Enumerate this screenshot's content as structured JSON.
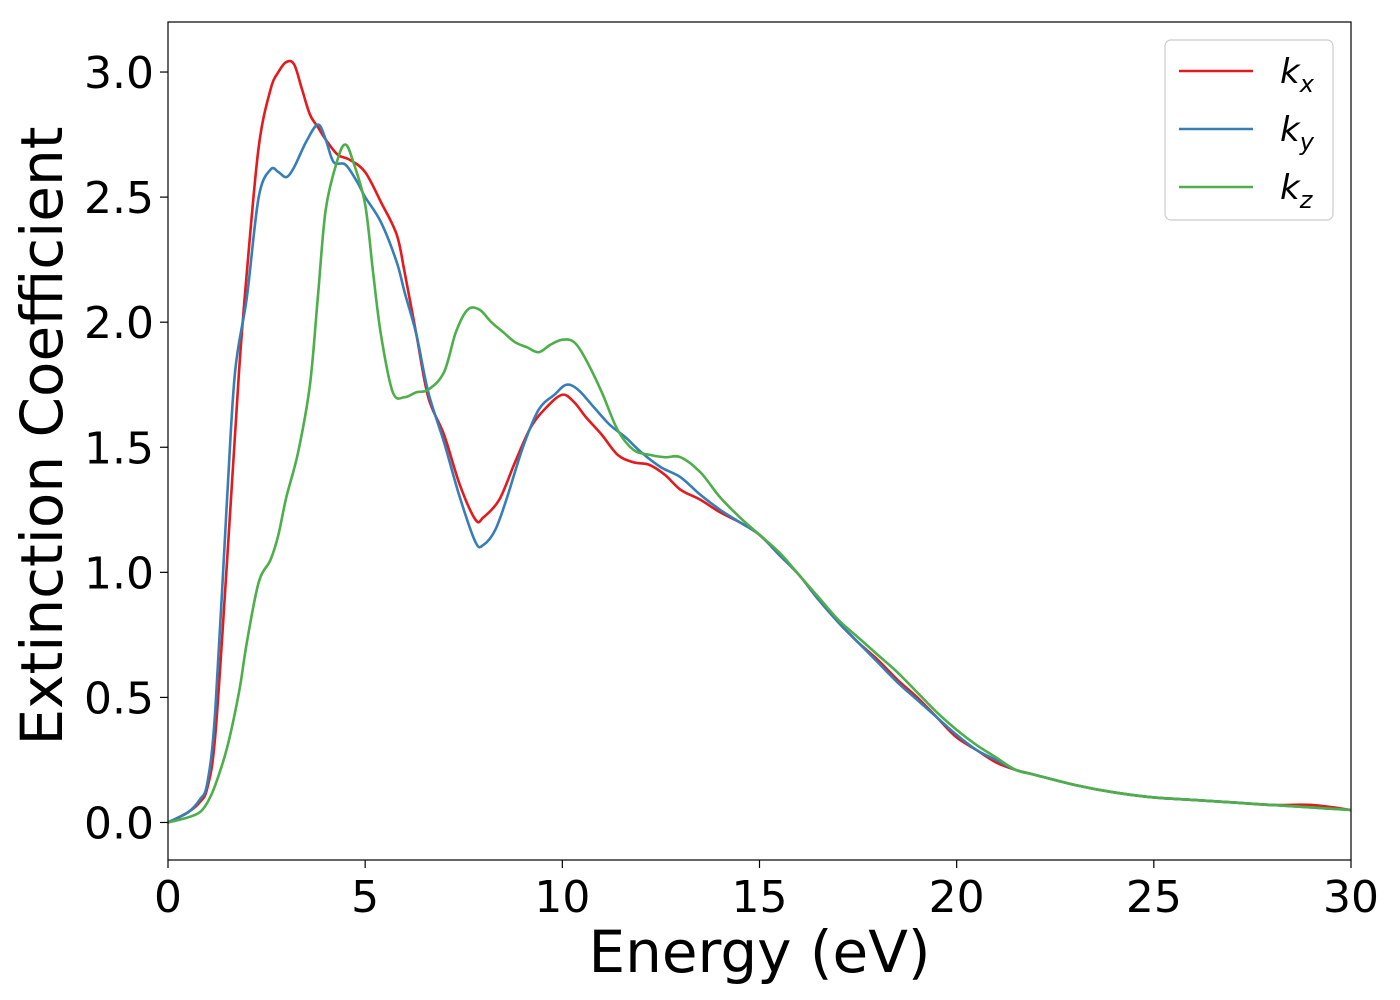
{
  "chart_data": {
    "type": "line",
    "title": "",
    "xlabel": "Energy (eV)",
    "ylabel": "Extinction Coefficient",
    "xlim": [
      0,
      30
    ],
    "ylim": [
      -0.15,
      3.2
    ],
    "xticks": [
      0,
      5,
      10,
      15,
      20,
      25,
      30
    ],
    "xtick_labels": [
      "0",
      "5",
      "10",
      "15",
      "20",
      "25",
      "30"
    ],
    "yticks": [
      0.0,
      0.5,
      1.0,
      1.5,
      2.0,
      2.5,
      3.0
    ],
    "ytick_labels": [
      "0.0",
      "0.5",
      "1.0",
      "1.5",
      "2.0",
      "2.5",
      "3.0"
    ],
    "grid": false,
    "legend_position": "top-right",
    "series": [
      {
        "name": "k_x",
        "label_base": "k",
        "label_sub": "x",
        "color": "#e41a1c",
        "x": [
          0,
          0.5,
          0.8,
          1.0,
          1.2,
          1.5,
          1.8,
          2.0,
          2.3,
          2.6,
          2.8,
          3.0,
          3.2,
          3.4,
          3.6,
          3.8,
          4.0,
          4.3,
          4.6,
          5.0,
          5.4,
          5.8,
          6.0,
          6.3,
          6.6,
          7.0,
          7.4,
          7.8,
          8.0,
          8.4,
          8.8,
          9.2,
          9.6,
          10.0,
          10.3,
          10.6,
          11.0,
          11.4,
          11.8,
          12.2,
          12.6,
          13.0,
          13.5,
          14.0,
          14.5,
          15.0,
          15.5,
          16.0,
          16.5,
          17.0,
          17.5,
          18.0,
          18.5,
          19.0,
          19.5,
          20.0,
          20.5,
          21.0,
          21.5,
          22.0,
          23.0,
          24.0,
          25.0,
          26.0,
          27.0,
          28.0,
          29.0,
          30.0
        ],
        "y": [
          0.0,
          0.04,
          0.08,
          0.14,
          0.35,
          1.05,
          1.8,
          2.2,
          2.7,
          2.93,
          3.0,
          3.04,
          3.03,
          2.93,
          2.83,
          2.78,
          2.73,
          2.67,
          2.65,
          2.6,
          2.48,
          2.35,
          2.2,
          1.95,
          1.7,
          1.55,
          1.35,
          1.21,
          1.22,
          1.29,
          1.44,
          1.58,
          1.66,
          1.71,
          1.68,
          1.62,
          1.55,
          1.47,
          1.44,
          1.43,
          1.39,
          1.33,
          1.29,
          1.24,
          1.2,
          1.15,
          1.07,
          0.99,
          0.89,
          0.8,
          0.72,
          0.65,
          0.57,
          0.5,
          0.42,
          0.34,
          0.29,
          0.24,
          0.21,
          0.19,
          0.15,
          0.12,
          0.1,
          0.09,
          0.08,
          0.07,
          0.07,
          0.05
        ]
      },
      {
        "name": "k_y",
        "label_base": "k",
        "label_sub": "y",
        "color": "#377eb8",
        "x": [
          0,
          0.5,
          0.8,
          1.0,
          1.2,
          1.5,
          1.7,
          2.0,
          2.3,
          2.6,
          2.8,
          3.0,
          3.2,
          3.5,
          3.8,
          4.0,
          4.2,
          4.5,
          4.8,
          5.0,
          5.4,
          5.8,
          6.0,
          6.3,
          6.6,
          7.0,
          7.4,
          7.8,
          8.0,
          8.3,
          8.6,
          9.0,
          9.4,
          9.8,
          10.1,
          10.4,
          10.8,
          11.2,
          11.6,
          12.0,
          12.5,
          13.0,
          13.5,
          14.0,
          14.5,
          15.0,
          15.5,
          16.0,
          16.5,
          17.0,
          17.5,
          18.0,
          18.5,
          19.0,
          19.5,
          20.0,
          20.5,
          21.0,
          21.5,
          22.0,
          23.0,
          24.0,
          25.0,
          26.0,
          27.0,
          28.0,
          29.0,
          30.0
        ],
        "y": [
          0.0,
          0.04,
          0.09,
          0.16,
          0.45,
          1.3,
          1.8,
          2.1,
          2.5,
          2.61,
          2.6,
          2.58,
          2.62,
          2.72,
          2.79,
          2.73,
          2.64,
          2.63,
          2.56,
          2.5,
          2.4,
          2.24,
          2.12,
          1.95,
          1.72,
          1.52,
          1.3,
          1.12,
          1.11,
          1.17,
          1.3,
          1.5,
          1.65,
          1.71,
          1.75,
          1.73,
          1.66,
          1.59,
          1.54,
          1.48,
          1.42,
          1.38,
          1.31,
          1.25,
          1.2,
          1.15,
          1.07,
          0.99,
          0.89,
          0.8,
          0.72,
          0.64,
          0.56,
          0.49,
          0.42,
          0.35,
          0.29,
          0.25,
          0.21,
          0.19,
          0.15,
          0.12,
          0.1,
          0.09,
          0.08,
          0.07,
          0.06,
          0.05
        ]
      },
      {
        "name": "k_z",
        "label_base": "k",
        "label_sub": "z",
        "color": "#4daf4a",
        "x": [
          0,
          0.5,
          0.8,
          1.0,
          1.2,
          1.5,
          1.8,
          2.0,
          2.3,
          2.6,
          2.8,
          3.0,
          3.3,
          3.6,
          3.8,
          4.0,
          4.3,
          4.5,
          4.7,
          5.0,
          5.2,
          5.4,
          5.7,
          6.0,
          6.3,
          6.6,
          7.0,
          7.3,
          7.6,
          7.9,
          8.2,
          8.5,
          8.8,
          9.1,
          9.4,
          9.7,
          10.0,
          10.3,
          10.6,
          11.0,
          11.4,
          11.8,
          12.2,
          12.6,
          13.0,
          13.5,
          14.0,
          14.5,
          15.0,
          15.5,
          16.0,
          16.5,
          17.0,
          17.5,
          18.0,
          18.5,
          19.0,
          19.5,
          20.0,
          20.5,
          21.0,
          21.5,
          22.0,
          23.0,
          24.0,
          25.0,
          26.0,
          27.0,
          28.0,
          29.0,
          30.0
        ],
        "y": [
          0.0,
          0.02,
          0.04,
          0.08,
          0.15,
          0.3,
          0.52,
          0.72,
          0.96,
          1.05,
          1.15,
          1.3,
          1.48,
          1.75,
          2.1,
          2.45,
          2.65,
          2.71,
          2.64,
          2.47,
          2.2,
          1.95,
          1.72,
          1.7,
          1.72,
          1.73,
          1.8,
          1.96,
          2.05,
          2.05,
          2.0,
          1.96,
          1.92,
          1.9,
          1.88,
          1.91,
          1.93,
          1.92,
          1.85,
          1.72,
          1.57,
          1.49,
          1.47,
          1.46,
          1.46,
          1.4,
          1.3,
          1.22,
          1.15,
          1.08,
          0.99,
          0.9,
          0.81,
          0.74,
          0.67,
          0.6,
          0.52,
          0.44,
          0.37,
          0.31,
          0.26,
          0.21,
          0.19,
          0.15,
          0.12,
          0.1,
          0.09,
          0.08,
          0.07,
          0.06,
          0.05
        ]
      }
    ]
  }
}
